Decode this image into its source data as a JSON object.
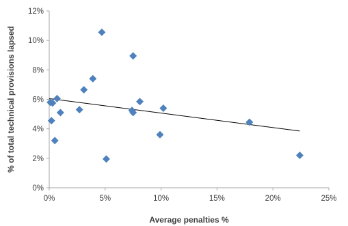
{
  "chart_data": {
    "type": "scatter",
    "title": "",
    "xlabel": "Average penalties %",
    "ylabel": "% of total technical provisions lapsed",
    "xlim": [
      0,
      25
    ],
    "ylim": [
      0,
      12
    ],
    "x_ticks": [
      0,
      5,
      10,
      15,
      20,
      25
    ],
    "y_ticks": [
      0,
      2,
      4,
      6,
      8,
      10,
      12
    ],
    "x_tick_labels": [
      "0%",
      "5%",
      "10%",
      "15%",
      "20%",
      "25%"
    ],
    "y_tick_labels": [
      "0%",
      "2%",
      "4%",
      "6%",
      "8%",
      "10%",
      "12%"
    ],
    "grid": false,
    "legend": "none",
    "series": [
      {
        "marker": "diamond",
        "color": "#4f81bd",
        "points": [
          {
            "x": 0.1,
            "y": 5.8
          },
          {
            "x": 0.3,
            "y": 5.75
          },
          {
            "x": 0.2,
            "y": 4.55
          },
          {
            "x": 0.5,
            "y": 3.2
          },
          {
            "x": 0.7,
            "y": 6.05
          },
          {
            "x": 1.0,
            "y": 5.1
          },
          {
            "x": 2.7,
            "y": 5.3
          },
          {
            "x": 3.1,
            "y": 6.65
          },
          {
            "x": 3.9,
            "y": 7.4
          },
          {
            "x": 4.7,
            "y": 10.55
          },
          {
            "x": 5.1,
            "y": 1.95
          },
          {
            "x": 7.4,
            "y": 5.25
          },
          {
            "x": 7.5,
            "y": 5.1
          },
          {
            "x": 7.5,
            "y": 8.95
          },
          {
            "x": 8.1,
            "y": 5.85
          },
          {
            "x": 9.9,
            "y": 3.6
          },
          {
            "x": 10.2,
            "y": 5.4
          },
          {
            "x": 17.9,
            "y": 4.45
          },
          {
            "x": 22.4,
            "y": 2.2
          }
        ]
      }
    ],
    "trendline": {
      "type": "linear",
      "color": "#000000",
      "from": {
        "x": 0,
        "y": 6.05
      },
      "to": {
        "x": 22.4,
        "y": 3.85
      }
    }
  }
}
